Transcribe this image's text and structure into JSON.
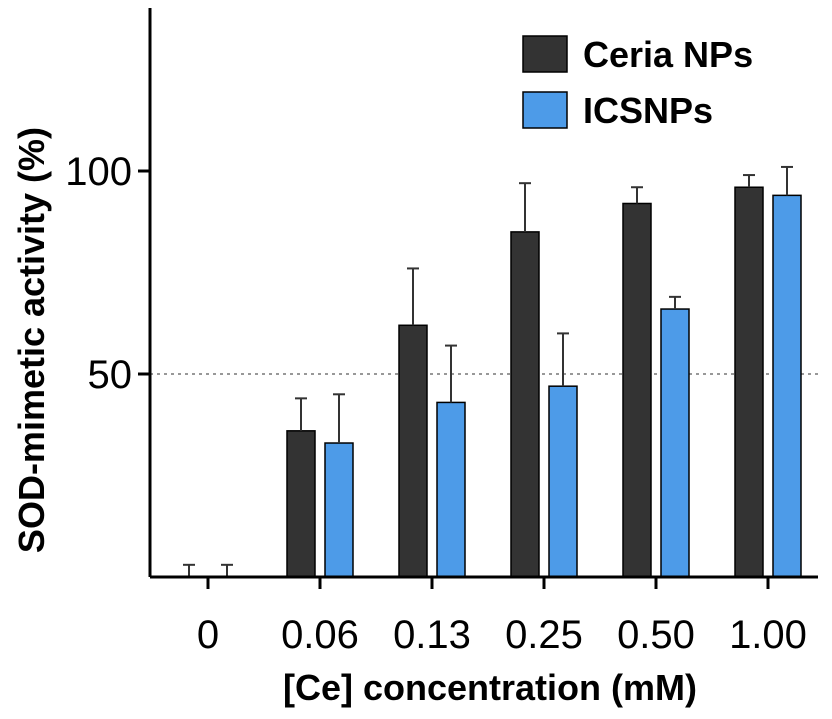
{
  "chart_data": {
    "type": "bar",
    "title": "",
    "xlabel": "[Ce] concentration  (mM)",
    "ylabel": "SOD-mimetic  activity  (%)",
    "categories": [
      "0",
      "0.06",
      "0.13",
      "0.25",
      "0.50",
      "1.00"
    ],
    "yticks": [
      "50",
      "100"
    ],
    "ylim": [
      0,
      140
    ],
    "reference_line": 50,
    "grid": false,
    "legend_position": "top-right",
    "series": [
      {
        "name": "Ceria NPs",
        "color": "#333333",
        "values": [
          0,
          36,
          62,
          85,
          92,
          96
        ],
        "errors": [
          3,
          8,
          14,
          12,
          4,
          3
        ]
      },
      {
        "name": "ICSNPs",
        "color": "#4d9be8",
        "values": [
          0,
          33,
          43,
          47,
          66,
          94
        ],
        "errors": [
          3,
          12,
          14,
          13,
          3,
          7
        ]
      }
    ]
  }
}
